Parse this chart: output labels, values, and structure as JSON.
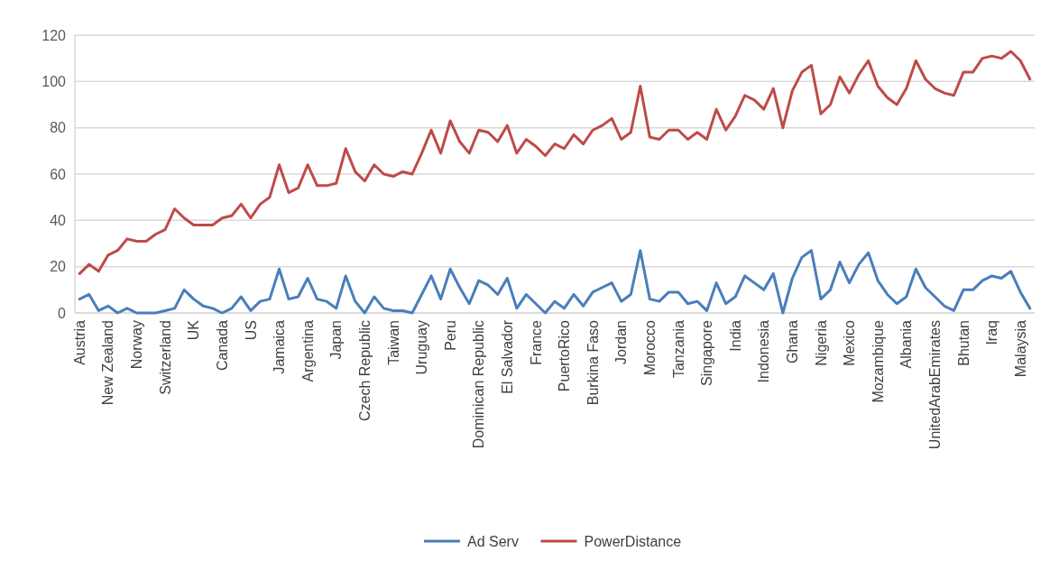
{
  "chart_data": {
    "type": "line",
    "categories": [
      "Austria",
      null,
      null,
      "New Zealand",
      null,
      null,
      "Norway",
      null,
      null,
      "Switzerland",
      null,
      null,
      "UK",
      null,
      null,
      "Canada",
      null,
      null,
      "US",
      null,
      null,
      "Jamaica",
      null,
      null,
      "Argentina",
      null,
      null,
      "Japan",
      null,
      null,
      "Czech Republic",
      null,
      null,
      "Taiwan",
      null,
      null,
      "Uruguay",
      null,
      null,
      "Peru",
      null,
      null,
      "Dominican Republic",
      null,
      null,
      "El Salvador",
      null,
      null,
      "France",
      null,
      null,
      "PuertoRico",
      null,
      null,
      "Burkina Faso",
      null,
      null,
      "Jordan",
      null,
      null,
      "Morocco",
      null,
      null,
      "Tanzania",
      null,
      null,
      "Singapore",
      null,
      null,
      "India",
      null,
      null,
      "Indonesia",
      null,
      null,
      "Ghana",
      null,
      null,
      "Nigeria",
      null,
      null,
      "Mexico",
      null,
      null,
      "Mozambique",
      null,
      null,
      "Albania",
      null,
      null,
      "UnitedArabEmirates",
      null,
      null,
      "Bhutan",
      null,
      null,
      "Iraq",
      null,
      null,
      "Malaysia",
      null
    ],
    "series": [
      {
        "name": "Ad Serv",
        "color": "#4a7ebb",
        "values": [
          6,
          8,
          1,
          3,
          0,
          2,
          0,
          0,
          0,
          1,
          2,
          10,
          6,
          3,
          2,
          0,
          2,
          7,
          1,
          5,
          6,
          19,
          6,
          7,
          15,
          6,
          5,
          2,
          16,
          5,
          0,
          7,
          2,
          1,
          1,
          0,
          8,
          16,
          6,
          19,
          11,
          4,
          14,
          12,
          8,
          15,
          2,
          8,
          4,
          0,
          5,
          2,
          8,
          3,
          9,
          11,
          13,
          5,
          8,
          27,
          6,
          5,
          9,
          9,
          4,
          5,
          1,
          13,
          4,
          7,
          16,
          13,
          10,
          17,
          0,
          15,
          24,
          27,
          6,
          10,
          22,
          13,
          21,
          26,
          14,
          8,
          4,
          7,
          19,
          11,
          7,
          3,
          1,
          10,
          10,
          14,
          16,
          15,
          18,
          9,
          2
        ]
      },
      {
        "name": "PowerDistance",
        "color": "#be4b48",
        "values": [
          17,
          21,
          18,
          25,
          27,
          32,
          31,
          31,
          34,
          36,
          45,
          41,
          38,
          38,
          38,
          41,
          42,
          47,
          41,
          47,
          50,
          64,
          52,
          54,
          64,
          55,
          55,
          56,
          71,
          61,
          57,
          64,
          60,
          59,
          61,
          60,
          69,
          79,
          69,
          83,
          74,
          69,
          79,
          78,
          74,
          81,
          69,
          75,
          72,
          68,
          73,
          71,
          77,
          73,
          79,
          81,
          84,
          75,
          78,
          98,
          76,
          75,
          79,
          79,
          75,
          78,
          75,
          88,
          79,
          85,
          94,
          92,
          88,
          97,
          80,
          96,
          104,
          107,
          86,
          90,
          102,
          95,
          103,
          109,
          98,
          93,
          90,
          97,
          109,
          101,
          97,
          95,
          94,
          104,
          104,
          110,
          111,
          110,
          113,
          109,
          101
        ]
      }
    ],
    "ylim": [
      0,
      120
    ],
    "yticks": [
      0,
      20,
      40,
      60,
      80,
      100,
      120
    ],
    "grid": "y",
    "legend": "bottom",
    "line_style": "solid",
    "marker": "none"
  }
}
